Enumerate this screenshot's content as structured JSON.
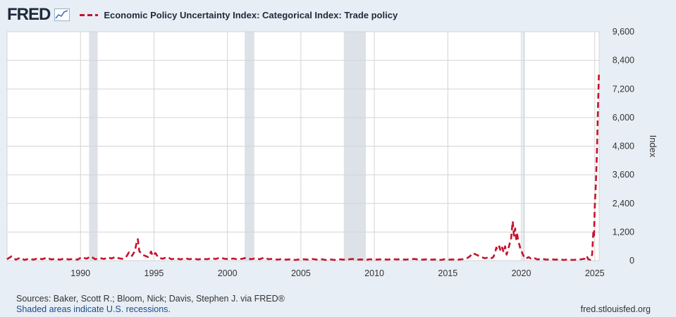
{
  "header": {
    "logo_text": "FRED",
    "logo_icon": "line-graph-icon",
    "title": "Economic Policy Uncertainty Index: Categorical Index: Trade policy"
  },
  "footer": {
    "sources": "Sources: Baker, Scott R.; Bloom, Nick; Davis, Stephen J. via FRED®",
    "recession_note": "Shaded areas indicate U.S. recessions.",
    "site": "fred.stlouisfed.org"
  },
  "colors": {
    "series": "#c8102e",
    "recession": "#dde2e8",
    "grid": "#d4d4d4",
    "background": "#e8eef5",
    "plot_background": "#ffffff"
  },
  "chart_data": {
    "type": "line",
    "title": "Economic Policy Uncertainty Index: Categorical Index: Trade policy",
    "xlabel": "",
    "ylabel": "Index",
    "y_axis_position": "right",
    "xlim": [
      1985.0,
      2025.3
    ],
    "ylim": [
      0,
      9600
    ],
    "yticks": [
      0,
      1200,
      2400,
      3600,
      4800,
      6000,
      7200,
      8400,
      9600
    ],
    "ytick_labels": [
      "0",
      "1,200",
      "2,400",
      "3,600",
      "4,800",
      "6,000",
      "7,200",
      "8,400",
      "9,600"
    ],
    "xticks": [
      1990,
      1995,
      2000,
      2005,
      2010,
      2015,
      2020,
      2025
    ],
    "xtick_labels": [
      "1990",
      "1995",
      "2000",
      "2005",
      "2010",
      "2015",
      "2020",
      "2025"
    ],
    "grid": true,
    "line_style": "dashed",
    "recessions": [
      {
        "start": 1990.58,
        "end": 1991.17
      },
      {
        "start": 2001.17,
        "end": 2001.83
      },
      {
        "start": 2007.92,
        "end": 2009.42
      },
      {
        "start": 2020.08,
        "end": 2020.25
      }
    ],
    "series": [
      {
        "name": "Economic Policy Uncertainty Index: Categorical Index: Trade policy",
        "points": [
          [
            1985.0,
            60
          ],
          [
            1985.3,
            180
          ],
          [
            1985.6,
            40
          ],
          [
            1985.9,
            120
          ],
          [
            1986.2,
            30
          ],
          [
            1986.5,
            90
          ],
          [
            1986.8,
            40
          ],
          [
            1987.1,
            100
          ],
          [
            1987.4,
            60
          ],
          [
            1987.7,
            130
          ],
          [
            1988.0,
            50
          ],
          [
            1988.3,
            80
          ],
          [
            1988.6,
            40
          ],
          [
            1988.9,
            90
          ],
          [
            1989.2,
            50
          ],
          [
            1989.5,
            70
          ],
          [
            1989.8,
            40
          ],
          [
            1990.1,
            150
          ],
          [
            1990.4,
            80
          ],
          [
            1990.7,
            180
          ],
          [
            1991.0,
            60
          ],
          [
            1991.3,
            110
          ],
          [
            1991.6,
            70
          ],
          [
            1991.9,
            140
          ],
          [
            1992.1,
            90
          ],
          [
            1992.4,
            160
          ],
          [
            1992.6,
            100
          ],
          [
            1992.9,
            70
          ],
          [
            1993.1,
            150
          ],
          [
            1993.3,
            350
          ],
          [
            1993.5,
            200
          ],
          [
            1993.7,
            400
          ],
          [
            1993.8,
            700
          ],
          [
            1993.9,
            900
          ],
          [
            1994.0,
            400
          ],
          [
            1994.2,
            250
          ],
          [
            1994.4,
            200
          ],
          [
            1994.6,
            150
          ],
          [
            1994.8,
            380
          ],
          [
            1994.9,
            200
          ],
          [
            1995.1,
            320
          ],
          [
            1995.3,
            120
          ],
          [
            1995.6,
            80
          ],
          [
            1995.9,
            150
          ],
          [
            1996.2,
            60
          ],
          [
            1996.5,
            100
          ],
          [
            1996.8,
            50
          ],
          [
            1997.1,
            110
          ],
          [
            1997.4,
            60
          ],
          [
            1997.7,
            90
          ],
          [
            1998.0,
            50
          ],
          [
            1998.3,
            80
          ],
          [
            1998.6,
            60
          ],
          [
            1998.9,
            100
          ],
          [
            1999.2,
            70
          ],
          [
            1999.5,
            120
          ],
          [
            1999.8,
            80
          ],
          [
            2000.1,
            60
          ],
          [
            2000.4,
            90
          ],
          [
            2000.7,
            50
          ],
          [
            2001.0,
            80
          ],
          [
            2001.3,
            120
          ],
          [
            2001.6,
            60
          ],
          [
            2001.9,
            100
          ],
          [
            2002.2,
            60
          ],
          [
            2002.5,
            130
          ],
          [
            2002.8,
            60
          ],
          [
            2003.1,
            80
          ],
          [
            2003.4,
            40
          ],
          [
            2003.7,
            70
          ],
          [
            2004.0,
            40
          ],
          [
            2004.3,
            60
          ],
          [
            2004.6,
            30
          ],
          [
            2004.9,
            50
          ],
          [
            2005.2,
            60
          ],
          [
            2005.5,
            40
          ],
          [
            2005.8,
            70
          ],
          [
            2006.1,
            40
          ],
          [
            2006.4,
            60
          ],
          [
            2006.7,
            30
          ],
          [
            2007.0,
            50
          ],
          [
            2007.3,
            30
          ],
          [
            2007.6,
            60
          ],
          [
            2007.9,
            40
          ],
          [
            2008.2,
            50
          ],
          [
            2008.5,
            70
          ],
          [
            2008.8,
            40
          ],
          [
            2009.1,
            50
          ],
          [
            2009.4,
            30
          ],
          [
            2009.7,
            60
          ],
          [
            2010.0,
            40
          ],
          [
            2010.3,
            50
          ],
          [
            2010.6,
            60
          ],
          [
            2010.9,
            40
          ],
          [
            2011.2,
            70
          ],
          [
            2011.5,
            50
          ],
          [
            2011.8,
            60
          ],
          [
            2012.1,
            40
          ],
          [
            2012.4,
            60
          ],
          [
            2012.7,
            70
          ],
          [
            2013.0,
            50
          ],
          [
            2013.3,
            40
          ],
          [
            2013.6,
            60
          ],
          [
            2013.9,
            40
          ],
          [
            2014.2,
            50
          ],
          [
            2014.5,
            30
          ],
          [
            2014.8,
            60
          ],
          [
            2015.1,
            40
          ],
          [
            2015.4,
            50
          ],
          [
            2015.7,
            40
          ],
          [
            2016.0,
            60
          ],
          [
            2016.3,
            100
          ],
          [
            2016.5,
            180
          ],
          [
            2016.7,
            320
          ],
          [
            2016.9,
            260
          ],
          [
            2017.1,
            200
          ],
          [
            2017.3,
            150
          ],
          [
            2017.5,
            100
          ],
          [
            2017.7,
            120
          ],
          [
            2017.9,
            80
          ],
          [
            2018.1,
            150
          ],
          [
            2018.2,
            300
          ],
          [
            2018.3,
            550
          ],
          [
            2018.4,
            450
          ],
          [
            2018.5,
            600
          ],
          [
            2018.6,
            400
          ],
          [
            2018.7,
            550
          ],
          [
            2018.8,
            350
          ],
          [
            2018.9,
            600
          ],
          [
            2019.0,
            250
          ],
          [
            2019.1,
            450
          ],
          [
            2019.2,
            700
          ],
          [
            2019.3,
            850
          ],
          [
            2019.35,
            1250
          ],
          [
            2019.42,
            1650
          ],
          [
            2019.5,
            1050
          ],
          [
            2019.58,
            1350
          ],
          [
            2019.65,
            900
          ],
          [
            2019.72,
            1100
          ],
          [
            2019.8,
            800
          ],
          [
            2019.88,
            650
          ],
          [
            2019.95,
            450
          ],
          [
            2020.05,
            350
          ],
          [
            2020.15,
            200
          ],
          [
            2020.3,
            80
          ],
          [
            2020.5,
            150
          ],
          [
            2020.7,
            60
          ],
          [
            2020.9,
            100
          ],
          [
            2021.1,
            50
          ],
          [
            2021.4,
            80
          ],
          [
            2021.7,
            40
          ],
          [
            2022.0,
            60
          ],
          [
            2022.3,
            40
          ],
          [
            2022.6,
            50
          ],
          [
            2022.9,
            30
          ],
          [
            2023.2,
            50
          ],
          [
            2023.5,
            30
          ],
          [
            2023.8,
            40
          ],
          [
            2024.1,
            60
          ],
          [
            2024.3,
            80
          ],
          [
            2024.45,
            200
          ],
          [
            2024.55,
            60
          ],
          [
            2024.7,
            40
          ],
          [
            2024.82,
            250
          ],
          [
            2024.9,
            1200
          ],
          [
            2024.95,
            1050
          ],
          [
            2025.0,
            2200
          ],
          [
            2025.08,
            3300
          ],
          [
            2025.15,
            4600
          ],
          [
            2025.22,
            6400
          ],
          [
            2025.28,
            7800
          ]
        ]
      }
    ]
  }
}
